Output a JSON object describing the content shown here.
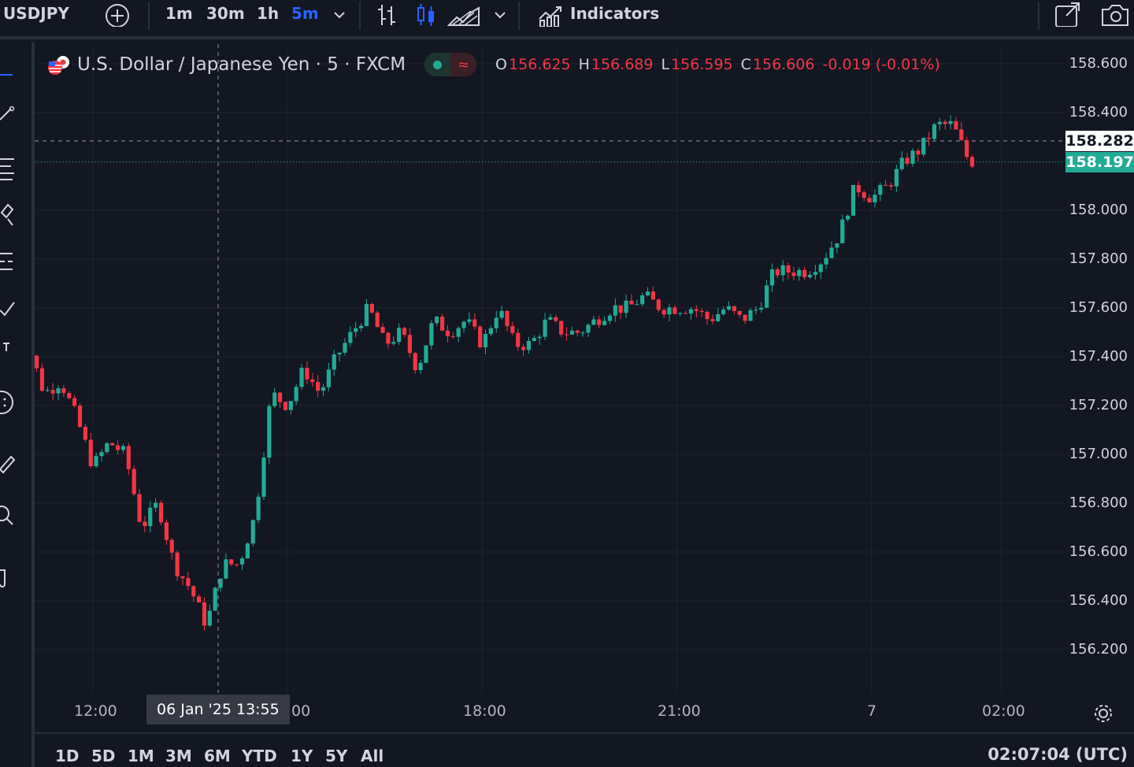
{
  "toolbar": {
    "symbol": "USDJPY",
    "intervals": [
      "1m",
      "30m",
      "1h",
      "5m"
    ],
    "active_interval": "5m",
    "indicators_label": "Indicators"
  },
  "legend": {
    "title": "U.S. Dollar / Japanese Yen · 5 · FXCM",
    "open_key": "O",
    "open": "156.625",
    "high_key": "H",
    "high": "156.689",
    "low_key": "L",
    "low": "156.595",
    "close_key": "C",
    "close": "156.606",
    "change": "-0.019 (-0.01%)",
    "status_symbol": "≈"
  },
  "price_axis": [
    "158.600",
    "158.400",
    "158.000",
    "157.800",
    "157.600",
    "157.400",
    "157.200",
    "157.000",
    "156.800",
    "156.600",
    "156.400",
    "156.200"
  ],
  "crosshair_price": "158.282",
  "last_price": "158.197",
  "time_axis": [
    "12:00",
    "00",
    "18:00",
    "21:00",
    "7",
    "02:00"
  ],
  "time_cursor": "06 Jan '25   13:55",
  "ranges": [
    "1D",
    "5D",
    "1M",
    "3M",
    "6M",
    "YTD",
    "1Y",
    "5Y",
    "All"
  ],
  "clock": "02:07:04 (UTC)",
  "colors": {
    "up": "#22ab94",
    "down": "#f23645",
    "accent": "#2962ff",
    "background": "#131722"
  },
  "chart_data": {
    "type": "candlestick",
    "ylim": [
      156.2,
      158.6
    ],
    "close_path": [
      [
        10.8,
        157.05
      ],
      [
        11.0,
        157.45
      ],
      [
        11.25,
        157.25
      ],
      [
        11.5,
        157.3
      ],
      [
        11.75,
        157.15
      ],
      [
        12.0,
        156.95
      ],
      [
        12.25,
        157.05
      ],
      [
        12.5,
        157.0
      ],
      [
        12.75,
        156.7
      ],
      [
        13.0,
        156.8
      ],
      [
        13.25,
        156.55
      ],
      [
        13.5,
        156.45
      ],
      [
        13.75,
        156.3
      ],
      [
        14.0,
        156.55
      ],
      [
        14.25,
        156.55
      ],
      [
        14.5,
        156.75
      ],
      [
        14.75,
        157.25
      ],
      [
        15.0,
        157.2
      ],
      [
        15.25,
        157.35
      ],
      [
        15.5,
        157.25
      ],
      [
        15.75,
        157.4
      ],
      [
        16.0,
        157.5
      ],
      [
        16.25,
        157.6
      ],
      [
        16.5,
        157.45
      ],
      [
        16.75,
        157.5
      ],
      [
        17.0,
        157.35
      ],
      [
        17.25,
        157.55
      ],
      [
        17.5,
        157.5
      ],
      [
        17.75,
        157.55
      ],
      [
        18.0,
        157.45
      ],
      [
        18.25,
        157.6
      ],
      [
        18.5,
        157.45
      ],
      [
        18.75,
        157.45
      ],
      [
        19.0,
        157.55
      ],
      [
        19.25,
        157.5
      ],
      [
        19.5,
        157.5
      ],
      [
        19.75,
        157.55
      ],
      [
        20.0,
        157.6
      ],
      [
        20.25,
        157.6
      ],
      [
        20.5,
        157.65
      ],
      [
        20.75,
        157.6
      ],
      [
        21.0,
        157.6
      ],
      [
        21.25,
        157.6
      ],
      [
        21.5,
        157.55
      ],
      [
        21.75,
        157.6
      ],
      [
        22.0,
        157.55
      ],
      [
        22.25,
        157.6
      ],
      [
        22.5,
        157.75
      ],
      [
        22.75,
        157.75
      ],
      [
        23.0,
        157.75
      ],
      [
        23.25,
        157.8
      ],
      [
        23.5,
        157.9
      ],
      [
        23.75,
        158.1
      ],
      [
        24.0,
        158.05
      ],
      [
        24.25,
        158.1
      ],
      [
        24.5,
        158.2
      ],
      [
        24.75,
        158.25
      ],
      [
        25.0,
        158.35
      ],
      [
        25.25,
        158.35
      ],
      [
        25.5,
        158.2
      ]
    ],
    "x_unit": "hour of day (06 Jan, UTC; values ≥ 24 run into 7 Jan)"
  }
}
